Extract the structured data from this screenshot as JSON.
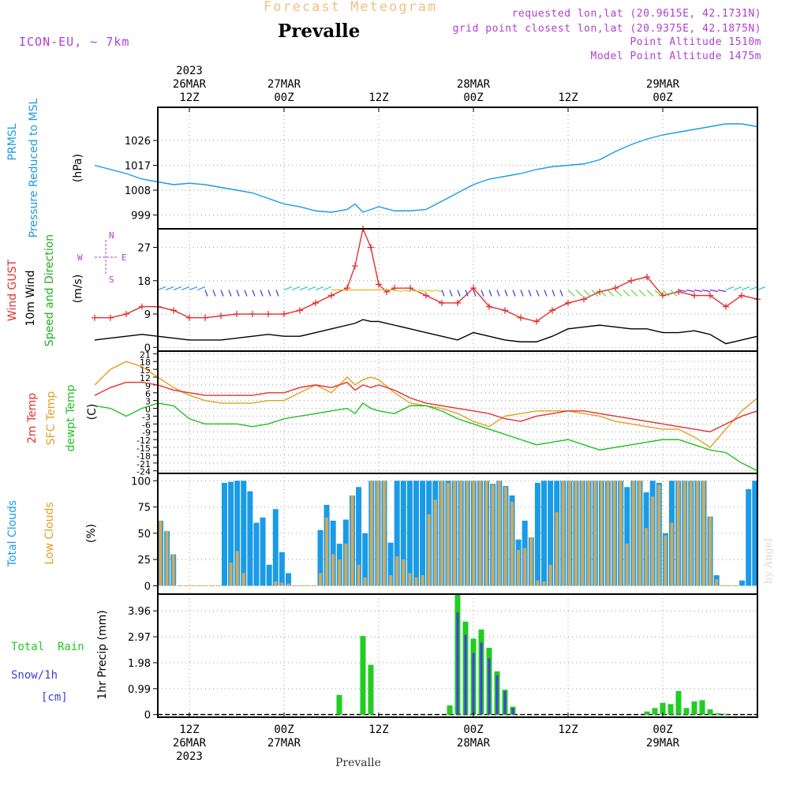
{
  "header": {
    "product_title": "Forecast Meteogram",
    "location": "Prevalle",
    "model": "ICON-EU, ~ 7km",
    "requested": "requested lon,lat (20.9615E, 42.1731N)",
    "grid_point": "grid point closest lon,lat (20.9375E, 42.1875N)",
    "point_altitude": "Point Altitude 1510m",
    "model_altitude": "Model Point Altitude 1475m",
    "footer_location": "Prevalle",
    "watermark": "by Angel"
  },
  "colors": {
    "pressure": "#1a9be6",
    "gust": "#e23030",
    "wind": "#000000",
    "wind_dir": "#20b020",
    "temp2m": "#e23030",
    "sfc_temp": "#e0a020",
    "dewpt": "#20c020",
    "total_clouds": "#1a9be6",
    "low_clouds": "#cdaa60",
    "rain": "#22cc22",
    "snow": "#4040e0",
    "compass": "#b040d0",
    "header_purple": "#b040d0",
    "product_title": "#f0c080"
  },
  "top_axis": [
    {
      "hour": 12,
      "lines": [
        "2023",
        "26MAR",
        "12Z"
      ]
    },
    {
      "hour": 24,
      "lines": [
        "27MAR",
        "00Z"
      ]
    },
    {
      "hour": 36,
      "lines": [
        "12Z"
      ]
    },
    {
      "hour": 48,
      "lines": [
        "28MAR",
        "00Z"
      ]
    },
    {
      "hour": 60,
      "lines": [
        "12Z"
      ]
    },
    {
      "hour": 72,
      "lines": [
        "29MAR",
        "00Z"
      ]
    }
  ],
  "bottom_axis": [
    {
      "hour": 12,
      "lines": [
        "12Z",
        "26MAR",
        "2023"
      ]
    },
    {
      "hour": 24,
      "lines": [
        "00Z",
        "27MAR"
      ]
    },
    {
      "hour": 36,
      "lines": [
        "12Z"
      ]
    },
    {
      "hour": 48,
      "lines": [
        "00Z",
        "28MAR"
      ]
    },
    {
      "hour": 60,
      "lines": [
        "12Z"
      ]
    },
    {
      "hour": 72,
      "lines": [
        "00Z",
        "29MAR"
      ]
    }
  ],
  "panels": {
    "pressure": {
      "labels": [
        "PRMSL",
        "Pressure Reduced to MSL"
      ],
      "unit": "(hPa)",
      "ticks": [
        "999",
        "1008",
        "1017",
        "1026"
      ]
    },
    "wind": {
      "labels": [
        "Wind GUST",
        "10m Wind",
        "Speed and Direction"
      ],
      "unit": "(m/s)",
      "ticks": [
        "0",
        "9",
        "18",
        "27"
      ],
      "compass": {
        "n": "N",
        "s": "S",
        "w": "W",
        "e": "E"
      }
    },
    "temp": {
      "labels": [
        "2m Temp",
        "SFC Temp",
        "dewpt Temp"
      ],
      "unit": "(C)",
      "ticks": [
        "-24",
        "-21",
        "-18",
        "-15",
        "-12",
        "-9",
        "-6",
        "-3",
        "0",
        "3",
        "6",
        "9",
        "12",
        "15",
        "18",
        "21"
      ]
    },
    "clouds": {
      "labels": [
        "Total Clouds",
        "Low Clouds"
      ],
      "unit": "(%)",
      "ticks": [
        "0",
        "25",
        "50",
        "75",
        "100"
      ]
    },
    "precip": {
      "labels": [
        "Total  Rain",
        "Snow/1h",
        "[cm]"
      ],
      "unit": "1hr Precip (mm)",
      "ticks": [
        "0",
        "0.99",
        "1.98",
        "2.97",
        "3.96"
      ]
    }
  },
  "chart_data": [
    {
      "type": "line",
      "title": "PRMSL Pressure Reduced to MSL",
      "ylabel": "(hPa)",
      "ylim": [
        994,
        1038
      ],
      "x_hours": [
        0,
        2,
        4,
        6,
        8,
        10,
        12,
        14,
        16,
        18,
        20,
        22,
        24,
        26,
        28,
        30,
        32,
        33,
        34,
        35,
        36,
        38,
        40,
        42,
        44,
        46,
        48,
        50,
        52,
        54,
        56,
        58,
        60,
        62,
        64,
        66,
        68,
        70,
        72,
        74,
        76,
        78,
        80,
        82,
        84
      ],
      "series": [
        {
          "name": "PRMSL",
          "values": [
            1017,
            1015.5,
            1014,
            1012,
            1011,
            1010,
            1010.5,
            1010,
            1009,
            1008,
            1007,
            1005,
            1003,
            1002,
            1000.5,
            1000,
            1001,
            1003,
            1000,
            1001,
            1002,
            1000.5,
            1000.5,
            1001,
            1004,
            1007,
            1010,
            1012,
            1013,
            1014,
            1015.5,
            1016.5,
            1017,
            1017.5,
            1019,
            1022,
            1024.5,
            1026.5,
            1028,
            1029,
            1030,
            1031,
            1032,
            1032,
            1031
          ]
        }
      ]
    },
    {
      "type": "line",
      "title": "Wind GUST / 10m Wind Speed and Direction",
      "ylabel": "(m/s)",
      "ylim": [
        -1,
        32
      ],
      "x_hours": [
        0,
        2,
        4,
        6,
        8,
        10,
        12,
        14,
        16,
        18,
        20,
        22,
        24,
        26,
        28,
        30,
        32,
        33,
        34,
        35,
        36,
        37,
        38,
        40,
        42,
        44,
        46,
        48,
        50,
        52,
        54,
        56,
        58,
        60,
        62,
        64,
        66,
        68,
        70,
        72,
        74,
        76,
        78,
        80,
        82,
        84
      ],
      "series": [
        {
          "name": "Wind GUST",
          "values": [
            8,
            8,
            9,
            11,
            11,
            10,
            8,
            8,
            8.5,
            9,
            9,
            9,
            9,
            10,
            12,
            14,
            16,
            22,
            32,
            27,
            17,
            15,
            16,
            16,
            14,
            12,
            12,
            16,
            11,
            10,
            8,
            7,
            10,
            12,
            13,
            15,
            16,
            18,
            19,
            14,
            15,
            14,
            14,
            11,
            14,
            13
          ]
        },
        {
          "name": "10m Wind",
          "values": [
            2,
            2.5,
            3,
            3.5,
            3,
            2.5,
            2,
            2,
            2,
            2.5,
            3,
            3.5,
            3,
            3,
            4,
            5,
            6,
            6.5,
            7.5,
            7,
            7,
            6.5,
            6,
            5,
            4,
            3,
            2,
            4,
            3,
            2,
            1.5,
            1.5,
            3,
            5,
            5.5,
            6,
            5.5,
            5,
            5,
            4,
            4,
            4.5,
            3.5,
            1,
            2,
            3
          ]
        }
      ],
      "wind_direction_arrows": "shown"
    },
    {
      "type": "line",
      "title": "2m Temp / SFC Temp / dewpt Temp",
      "ylabel": "(C)",
      "ylim": [
        -25,
        22
      ],
      "x_hours": [
        0,
        2,
        4,
        6,
        8,
        10,
        12,
        14,
        16,
        18,
        20,
        22,
        24,
        26,
        28,
        30,
        32,
        33,
        34,
        35,
        36,
        38,
        40,
        42,
        44,
        46,
        48,
        50,
        52,
        54,
        56,
        58,
        60,
        62,
        64,
        66,
        68,
        70,
        72,
        74,
        76,
        78,
        80,
        82,
        84
      ],
      "series": [
        {
          "name": "2m Temp",
          "values": [
            5,
            8,
            10,
            10,
            9,
            7,
            6,
            5,
            5,
            5,
            5,
            6,
            6,
            8,
            9,
            8,
            10,
            7,
            9,
            8,
            9,
            7,
            4,
            2,
            1,
            0,
            -1,
            -2,
            -4,
            -5,
            -3,
            -2,
            -1,
            -1,
            -2,
            -3,
            -4,
            -5,
            -6,
            -7,
            -8,
            -9,
            -6,
            -3,
            -1
          ]
        },
        {
          "name": "SFC Temp",
          "values": [
            9,
            15,
            18,
            16,
            12,
            8,
            5,
            3,
            2,
            2,
            2,
            3,
            3,
            6,
            9,
            6,
            12,
            9,
            11,
            12,
            11,
            6,
            2,
            1,
            0,
            -2,
            -5,
            -7,
            -3,
            -2,
            -1,
            -1,
            -1,
            -2,
            -3,
            -5,
            -6,
            -7,
            -8,
            -8,
            -11,
            -15,
            -8,
            -1,
            4
          ]
        },
        {
          "name": "dewpt Temp",
          "values": [
            1,
            0,
            -3,
            0,
            2,
            1,
            -4,
            -6,
            -6,
            -6,
            -7,
            -6,
            -4,
            -3,
            -2,
            -1,
            0,
            -2,
            2,
            0,
            -1,
            -2,
            1,
            1,
            -1,
            -4,
            -6,
            -8,
            -10,
            -12,
            -14,
            -13,
            -12,
            -14,
            -16,
            -15,
            -14,
            -13,
            -12,
            -12,
            -14,
            -16,
            -17,
            -21,
            -24
          ]
        }
      ]
    },
    {
      "type": "bar",
      "title": "Total Clouds / Low Clouds",
      "ylabel": "(%)",
      "ylim": [
        -8,
        107
      ],
      "x_start_hour": 0,
      "x_step_hours": 1,
      "series": [
        {
          "name": "Total Clouds",
          "values": [
            62,
            52,
            30,
            0,
            0,
            0,
            0,
            0,
            0,
            0,
            98,
            99,
            100,
            100,
            90,
            60,
            65,
            20,
            73,
            32,
            12,
            0,
            0,
            0,
            0,
            53,
            77,
            62,
            40,
            63,
            86,
            94,
            50,
            100,
            100,
            100,
            41,
            100,
            100,
            100,
            100,
            100,
            100,
            100,
            100,
            100,
            100,
            100,
            100,
            100,
            100,
            100,
            97,
            100,
            95,
            86,
            44,
            62,
            46,
            98,
            100,
            100,
            100,
            100,
            100,
            100,
            100,
            100,
            100,
            100,
            100,
            100,
            100,
            94,
            100,
            100,
            89,
            100,
            98,
            50,
            100,
            100,
            100,
            100,
            100,
            100,
            66,
            10,
            0,
            0,
            0,
            5,
            92,
            100
          ]
        },
        {
          "name": "Low Clouds",
          "values": [
            62,
            52,
            30,
            0,
            0,
            0,
            0,
            0,
            0,
            0,
            0,
            22,
            33,
            12,
            0,
            0,
            0,
            0,
            4,
            3,
            2,
            0,
            0,
            0,
            0,
            12,
            65,
            30,
            25,
            40,
            86,
            20,
            8,
            100,
            100,
            100,
            10,
            28,
            25,
            12,
            8,
            10,
            68,
            82,
            100,
            98,
            100,
            100,
            100,
            100,
            100,
            100,
            96,
            100,
            94,
            80,
            34,
            36,
            46,
            5,
            4,
            20,
            70,
            100,
            100,
            100,
            100,
            100,
            100,
            100,
            100,
            100,
            100,
            40,
            100,
            100,
            55,
            85,
            96,
            48,
            60,
            100,
            100,
            100,
            100,
            100,
            66,
            6,
            0,
            0,
            0,
            0,
            0,
            0
          ]
        }
      ]
    },
    {
      "type": "bar",
      "title": "1hr Precip (mm)",
      "ylabel": "1hr Precip (mm)",
      "ylim": [
        -0.1,
        4.6
      ],
      "x_hours": [
        31,
        34,
        35,
        45,
        46,
        47,
        48,
        49,
        50,
        51,
        52,
        53,
        54,
        70,
        71,
        72,
        73,
        74,
        75,
        76,
        77,
        78,
        79,
        80
      ],
      "series": [
        {
          "name": "Total Rain",
          "values": [
            0.75,
            3.0,
            1.9,
            0.35,
            4.6,
            3.55,
            2.9,
            3.25,
            2.55,
            1.65,
            0.95,
            0.3,
            0.01,
            0.12,
            0.25,
            0.45,
            0.4,
            0.9,
            0.25,
            0.5,
            0.55,
            0.2,
            0.05,
            0.03
          ]
        },
        {
          "name": "Snow/1h",
          "values": [
            0,
            0,
            0,
            0,
            3.9,
            3.05,
            2.35,
            2.75,
            2.15,
            1.5,
            0.9,
            0.25,
            0,
            0,
            0,
            0,
            0,
            0,
            0,
            0,
            0,
            0,
            0,
            0
          ]
        }
      ]
    }
  ]
}
